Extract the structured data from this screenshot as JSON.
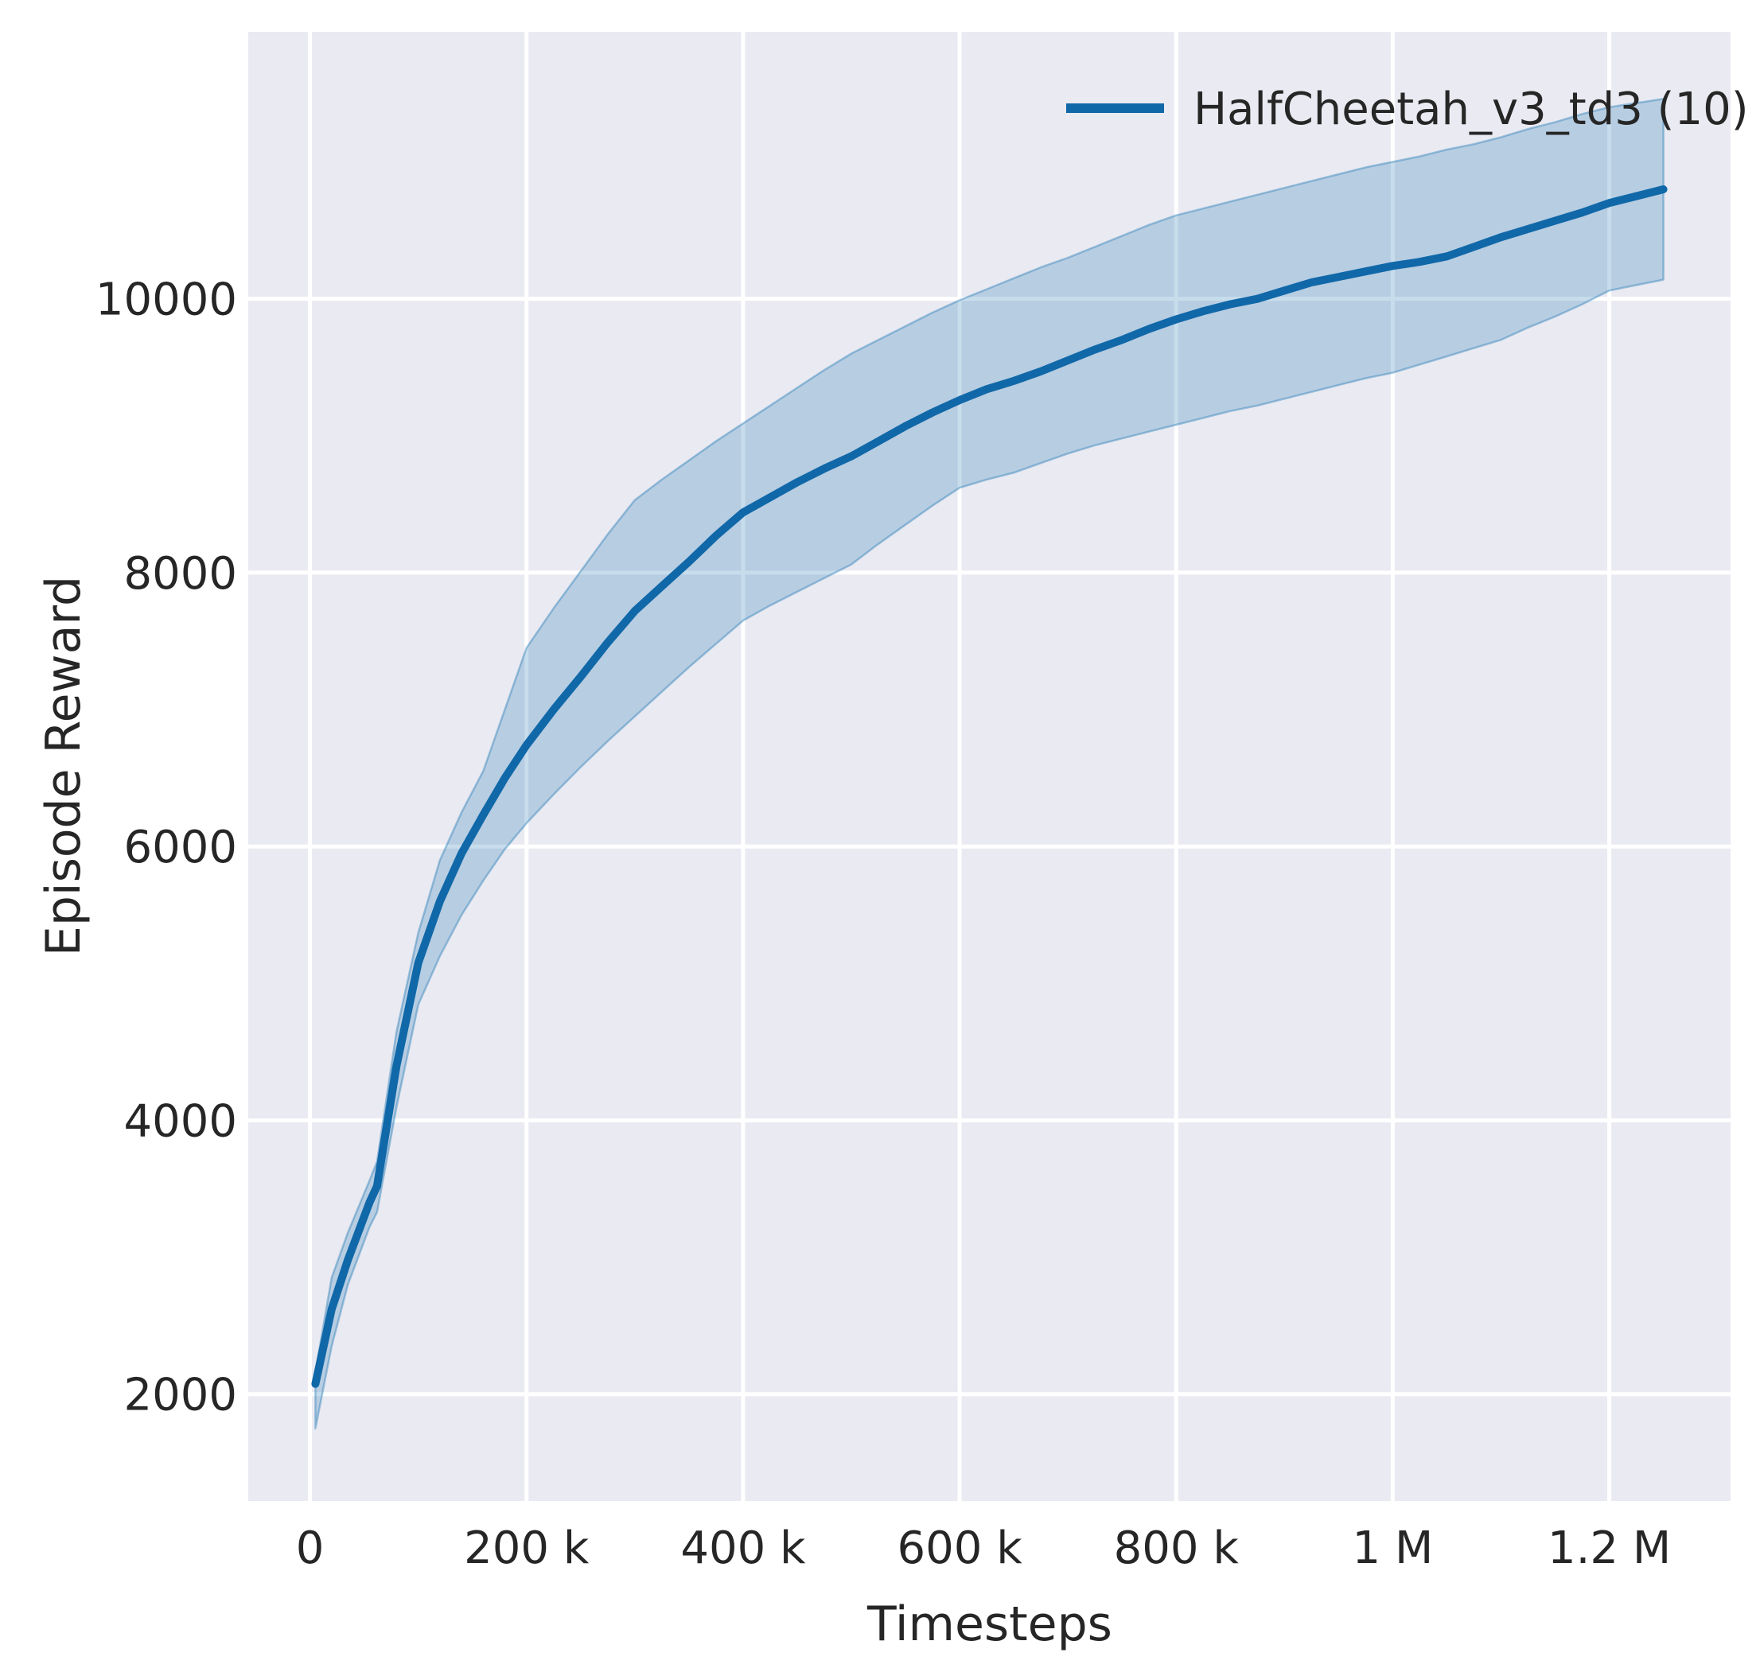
{
  "figure": {
    "background": "#ffffff",
    "axes_background": "#eaeaf2",
    "grid_color": "#ffffff",
    "text_color": "#262626"
  },
  "chart_data": {
    "type": "line",
    "title": "",
    "xlabel": "Timesteps",
    "ylabel": "Episode Reward",
    "grid": true,
    "xlim": [
      -57000,
      1312000
    ],
    "ylim": [
      1220,
      11950
    ],
    "x_ticks": [
      {
        "value": 0,
        "label": "0"
      },
      {
        "value": 200000,
        "label": "200 k"
      },
      {
        "value": 400000,
        "label": "400 k"
      },
      {
        "value": 600000,
        "label": "600 k"
      },
      {
        "value": 800000,
        "label": "800 k"
      },
      {
        "value": 1000000,
        "label": "1 M"
      },
      {
        "value": 1200000,
        "label": "1.2 M"
      }
    ],
    "y_ticks": [
      {
        "value": 2000,
        "label": "2000"
      },
      {
        "value": 4000,
        "label": "4000"
      },
      {
        "value": 6000,
        "label": "6000"
      },
      {
        "value": 8000,
        "label": "8000"
      },
      {
        "value": 10000,
        "label": "10000"
      }
    ],
    "legend": {
      "position": "upper right",
      "entries": [
        {
          "label": "HalfCheetah_v3_td3 (10)",
          "color": "#1068a8"
        }
      ]
    },
    "series": [
      {
        "name": "HalfCheetah_v3_td3 (10)",
        "color": "#1068a8",
        "band_fill": "rgba(31,119,180,0.25)",
        "band_edge": "rgba(31,119,180,0.40)",
        "x": [
          5000,
          20000,
          35000,
          55000,
          62000,
          80000,
          100000,
          120000,
          140000,
          160000,
          180000,
          200000,
          225000,
          250000,
          275000,
          300000,
          325000,
          350000,
          375000,
          400000,
          425000,
          450000,
          475000,
          500000,
          525000,
          550000,
          575000,
          600000,
          625000,
          650000,
          675000,
          700000,
          725000,
          750000,
          775000,
          800000,
          825000,
          850000,
          875000,
          900000,
          925000,
          950000,
          975000,
          1000000,
          1025000,
          1050000,
          1075000,
          1100000,
          1125000,
          1150000,
          1175000,
          1200000,
          1225000,
          1250000
        ],
        "mean": [
          2075,
          2620,
          2980,
          3400,
          3520,
          4400,
          5150,
          5600,
          5950,
          6230,
          6500,
          6740,
          7000,
          7240,
          7490,
          7720,
          7900,
          8080,
          8270,
          8440,
          8550,
          8660,
          8760,
          8850,
          8960,
          9070,
          9170,
          9260,
          9340,
          9400,
          9470,
          9550,
          9630,
          9700,
          9780,
          9850,
          9910,
          9960,
          10000,
          10060,
          10120,
          10160,
          10200,
          10240,
          10270,
          10310,
          10380,
          10450,
          10510,
          10570,
          10630,
          10700,
          10750,
          10800
        ],
        "lo": [
          1750,
          2350,
          2800,
          3220,
          3330,
          4100,
          4845,
          5200,
          5500,
          5750,
          5980,
          6170,
          6380,
          6580,
          6770,
          6950,
          7130,
          7310,
          7480,
          7650,
          7760,
          7860,
          7960,
          8060,
          8210,
          8350,
          8490,
          8620,
          8680,
          8730,
          8800,
          8870,
          8930,
          8980,
          9030,
          9080,
          9130,
          9180,
          9220,
          9270,
          9320,
          9370,
          9420,
          9460,
          9520,
          9580,
          9640,
          9700,
          9790,
          9870,
          9960,
          10060,
          10100,
          10140
        ],
        "hi": [
          2160,
          2850,
          3180,
          3560,
          3700,
          4650,
          5370,
          5900,
          6250,
          6550,
          7000,
          7450,
          7740,
          8010,
          8280,
          8530,
          8680,
          8820,
          8960,
          9090,
          9220,
          9350,
          9480,
          9600,
          9700,
          9800,
          9900,
          9990,
          10070,
          10150,
          10230,
          10300,
          10380,
          10460,
          10540,
          10610,
          10660,
          10710,
          10760,
          10810,
          10860,
          10910,
          10960,
          11000,
          11040,
          11090,
          11130,
          11180,
          11240,
          11290,
          11350,
          11400,
          11430,
          11460
        ]
      }
    ]
  }
}
